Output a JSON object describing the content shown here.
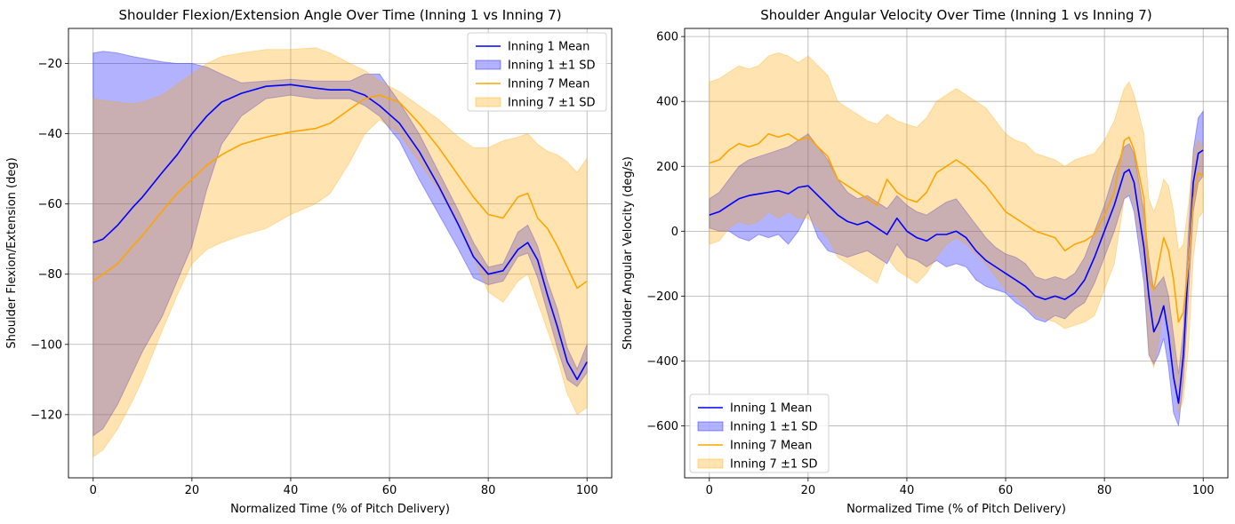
{
  "chart_data": [
    {
      "type": "line",
      "title": "Shoulder Flexion/Extension Angle Over Time (Inning 1 vs Inning 7)",
      "xlabel": "Normalized Time (% of Pitch Delivery)",
      "ylabel": "Shoulder Flexion/Extension (deg)",
      "xlim": [
        -5,
        105
      ],
      "ylim": [
        -138,
        -10
      ],
      "xticks": [
        0,
        20,
        40,
        60,
        80,
        100
      ],
      "yticks": [
        -120,
        -100,
        -80,
        -60,
        -40,
        -20
      ],
      "grid": true,
      "legend_position": "top-right",
      "legend": [
        "Inning 1 Mean",
        "Inning 1 ±1 SD",
        "Inning 7 Mean",
        "Inning 7 ±1 SD"
      ],
      "colors": {
        "inning1": "#0000ff",
        "inning7": "#ffa500"
      },
      "x": [
        0,
        2,
        5,
        8,
        10,
        14,
        17,
        20,
        23,
        26,
        30,
        35,
        40,
        45,
        48,
        52,
        55,
        58,
        62,
        66,
        70,
        74,
        77,
        80,
        83,
        86,
        88,
        90,
        92,
        94,
        96,
        98,
        100
      ],
      "series": [
        {
          "name": "Inning 1 Mean",
          "values": [
            -71,
            -70,
            -66,
            -61,
            -58,
            -51,
            -46,
            -40,
            -35,
            -31,
            -28.5,
            -26.5,
            -26,
            -27,
            -27.5,
            -27.5,
            -29,
            -32,
            -37,
            -45,
            -55,
            -66,
            -75,
            -80,
            -79,
            -73,
            -71,
            -76,
            -86,
            -95,
            -105,
            -110,
            -105
          ]
        },
        {
          "name": "Inning 7 Mean",
          "values": [
            -82,
            -80,
            -77,
            -72,
            -69,
            -62,
            -57,
            -53,
            -49,
            -46,
            -43,
            -41,
            -39.5,
            -38.5,
            -37,
            -33,
            -30,
            -29,
            -31,
            -37,
            -44,
            -52,
            -58,
            -63,
            -64,
            -58,
            -57,
            -64,
            -67,
            -72,
            -78,
            -84,
            -82
          ]
        }
      ],
      "bands": [
        {
          "name": "Inning 1 ±1 SD",
          "upper": [
            -17,
            -16.5,
            -17,
            -18,
            -18.5,
            -19.5,
            -20,
            -20,
            -21,
            -23,
            -25.5,
            -25,
            -24.5,
            -25,
            -25,
            -25,
            -23,
            -23,
            -31,
            -40,
            -51,
            -62,
            -71,
            -78,
            -77,
            -68,
            -66,
            -72,
            -82,
            -90,
            -101,
            -107,
            -100
          ],
          "lower": [
            -126,
            -124,
            -117,
            -108,
            -102,
            -92,
            -82,
            -72,
            -56,
            -43,
            -35,
            -30,
            -29,
            -30,
            -30,
            -30,
            -32,
            -35,
            -42,
            -53,
            -63,
            -73,
            -81,
            -83,
            -82,
            -75,
            -74,
            -81,
            -91,
            -101,
            -110,
            -112,
            -108
          ]
        },
        {
          "name": "Inning 7 ±1 SD",
          "upper": [
            -30,
            -30.5,
            -31,
            -31.5,
            -31,
            -29,
            -26,
            -23,
            -20,
            -18,
            -17,
            -16,
            -16,
            -15.5,
            -17,
            -20,
            -22,
            -25,
            -28,
            -32,
            -36,
            -41,
            -44,
            -44,
            -42,
            -41,
            -40,
            -43,
            -45,
            -46,
            -48,
            -51,
            -47
          ],
          "lower": [
            -132,
            -130,
            -124,
            -116,
            -110,
            -96,
            -86,
            -77,
            -73,
            -71,
            -69,
            -67,
            -63,
            -60,
            -57,
            -48,
            -40,
            -36,
            -40,
            -48,
            -56,
            -66,
            -75,
            -85,
            -88,
            -82,
            -80,
            -88,
            -96,
            -104,
            -114,
            -120,
            -118
          ]
        }
      ]
    },
    {
      "type": "line",
      "title": "Shoulder Angular Velocity Over Time (Inning 1 vs Inning 7)",
      "xlabel": "Normalized Time (% of Pitch Delivery)",
      "ylabel": "Shoulder Angular Velocity (deg/s)",
      "xlim": [
        -5,
        105
      ],
      "ylim": [
        -760,
        625
      ],
      "xticks": [
        0,
        20,
        40,
        60,
        80,
        100
      ],
      "yticks": [
        -600,
        -400,
        -200,
        0,
        200,
        400,
        600
      ],
      "grid": true,
      "legend_position": "bottom-left",
      "legend": [
        "Inning 1 Mean",
        "Inning 1 ±1 SD",
        "Inning 7 Mean",
        "Inning 7 ±1 SD"
      ],
      "colors": {
        "inning1": "#0000ff",
        "inning7": "#ffa500"
      },
      "x": [
        0,
        2,
        4,
        6,
        8,
        10,
        12,
        14,
        16,
        18,
        20,
        22,
        24,
        26,
        28,
        30,
        32,
        34,
        36,
        38,
        40,
        42,
        44,
        46,
        48,
        50,
        52,
        54,
        56,
        58,
        60,
        62,
        64,
        66,
        68,
        70,
        72,
        74,
        76,
        78,
        80,
        82,
        84,
        85,
        86,
        88,
        89,
        90,
        91,
        92,
        93,
        94,
        95,
        96,
        97,
        98,
        99,
        100
      ],
      "series": [
        {
          "name": "Inning 1 Mean",
          "values": [
            50,
            60,
            80,
            100,
            110,
            115,
            120,
            125,
            115,
            135,
            140,
            110,
            80,
            50,
            30,
            20,
            30,
            10,
            -10,
            40,
            0,
            -20,
            -30,
            -10,
            -10,
            0,
            -20,
            -60,
            -90,
            -110,
            -130,
            -150,
            -170,
            -200,
            -210,
            -200,
            -210,
            -190,
            -150,
            -80,
            0,
            80,
            180,
            190,
            150,
            -50,
            -200,
            -310,
            -280,
            -230,
            -320,
            -450,
            -530,
            -380,
            -100,
            150,
            240,
            250
          ]
        },
        {
          "name": "Inning 7 Mean",
          "values": [
            210,
            220,
            250,
            270,
            260,
            270,
            300,
            290,
            300,
            280,
            290,
            260,
            230,
            160,
            140,
            120,
            100,
            80,
            160,
            120,
            100,
            90,
            120,
            180,
            200,
            220,
            200,
            170,
            140,
            100,
            60,
            40,
            20,
            0,
            -10,
            -20,
            -60,
            -40,
            -30,
            -10,
            50,
            120,
            280,
            290,
            250,
            100,
            -150,
            -180,
            -100,
            -20,
            -60,
            -150,
            -280,
            -250,
            -100,
            100,
            180,
            170
          ]
        }
      ],
      "bands": [
        {
          "name": "Inning 1 ±1 SD",
          "upper": [
            100,
            120,
            160,
            200,
            220,
            230,
            240,
            250,
            260,
            280,
            300,
            260,
            220,
            160,
            120,
            100,
            110,
            90,
            70,
            110,
            80,
            60,
            50,
            70,
            90,
            100,
            60,
            20,
            -20,
            -50,
            -70,
            -80,
            -100,
            -140,
            -150,
            -140,
            -150,
            -130,
            -80,
            0,
            80,
            180,
            260,
            270,
            240,
            60,
            -80,
            -180,
            -160,
            -140,
            -200,
            -320,
            -440,
            -300,
            0,
            250,
            350,
            370
          ],
          "lower": [
            10,
            0,
            0,
            -20,
            -30,
            -10,
            -20,
            -10,
            -40,
            0,
            60,
            -20,
            -60,
            -70,
            -80,
            -70,
            -60,
            -80,
            -100,
            -40,
            -80,
            -90,
            -110,
            -90,
            -110,
            -100,
            -110,
            -150,
            -170,
            -180,
            -190,
            -220,
            -240,
            -270,
            -280,
            -260,
            -270,
            -240,
            -220,
            -160,
            -80,
            0,
            100,
            110,
            60,
            -160,
            -380,
            -410,
            -380,
            -330,
            -420,
            -560,
            -600,
            -460,
            -200,
            60,
            150,
            170
          ]
        },
        {
          "name": "Inning 7 ±1 SD",
          "upper": [
            460,
            470,
            490,
            510,
            500,
            510,
            540,
            550,
            540,
            520,
            540,
            510,
            480,
            400,
            380,
            360,
            340,
            330,
            360,
            340,
            330,
            320,
            350,
            400,
            420,
            440,
            420,
            400,
            380,
            340,
            300,
            280,
            270,
            240,
            230,
            220,
            200,
            220,
            230,
            240,
            280,
            340,
            440,
            460,
            420,
            300,
            100,
            60,
            100,
            160,
            140,
            60,
            -60,
            -40,
            80,
            240,
            280,
            260
          ],
          "lower": [
            -40,
            -30,
            10,
            30,
            20,
            30,
            60,
            40,
            60,
            40,
            40,
            10,
            -20,
            -80,
            -100,
            -120,
            -140,
            -160,
            -80,
            -120,
            -140,
            -160,
            -130,
            -80,
            -40,
            -20,
            -40,
            -70,
            -100,
            -140,
            -180,
            -200,
            -230,
            -260,
            -270,
            -280,
            -300,
            -290,
            -280,
            -260,
            -180,
            -100,
            100,
            120,
            80,
            -100,
            -380,
            -420,
            -340,
            -230,
            -290,
            -400,
            -560,
            -520,
            -360,
            -80,
            40,
            60
          ]
        }
      ]
    }
  ]
}
